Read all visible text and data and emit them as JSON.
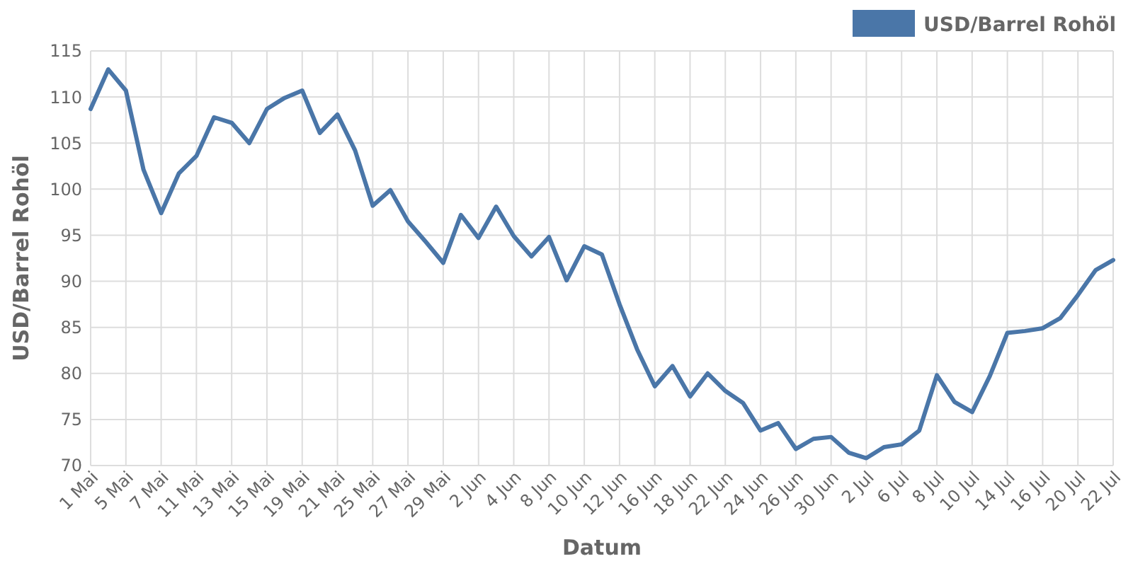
{
  "chart_data": {
    "type": "line",
    "xlabel": "Datum",
    "ylabel": "USD/Barrel Rohöl",
    "categories": [
      "1 Mai",
      null,
      "5 Mai",
      null,
      "7 Mai",
      null,
      "11 Mai",
      null,
      "13 Mai",
      null,
      "15 Mai",
      null,
      "19 Mai",
      null,
      "21 Mai",
      null,
      "25 Mai",
      null,
      "27 Mai",
      null,
      "29 Mai",
      null,
      "2 Jun",
      null,
      "4 Jun",
      null,
      "8 Jun",
      null,
      "10 Jun",
      null,
      "12 Jun",
      null,
      "16 Jun",
      null,
      "18 Jun",
      null,
      "22 Jun",
      null,
      "24 Jun",
      null,
      "26 Jun",
      null,
      "30 Jun",
      null,
      "2 Jul",
      null,
      "6 Jul",
      null,
      "8 Jul",
      null,
      "10 Jul",
      null,
      "14 Jul",
      null,
      "16 Jul",
      null,
      "20 Jul",
      null,
      "22 Jul"
    ],
    "series": [
      {
        "name": "USD/Barrel Rohöl",
        "color": "#4a76a8",
        "values": [
          108.7,
          113,
          110.7,
          102.1,
          97.4,
          101.7,
          103.6,
          107.8,
          107.2,
          105,
          108.7,
          109.9,
          110.7,
          106.1,
          108.1,
          104.2,
          98.2,
          99.9,
          96.5,
          94.3,
          92,
          97.2,
          94.7,
          98.1,
          94.9,
          92.7,
          94.8,
          90.1,
          93.8,
          92.9,
          87.5,
          82.6,
          78.6,
          80.8,
          77.5,
          80,
          78.1,
          76.8,
          73.8,
          74.6,
          71.8,
          72.9,
          73.1,
          71.4,
          70.8,
          72,
          72.3,
          73.8,
          79.8,
          76.9,
          75.8,
          79.7,
          84.4,
          84.6,
          84.9,
          86,
          88.5,
          91.2,
          92.3
        ]
      }
    ],
    "ylim": [
      70,
      115
    ],
    "yticks": [
      70,
      75,
      80,
      85,
      90,
      95,
      100,
      105,
      110,
      115
    ],
    "grid": true,
    "legend": "top right",
    "marker": "none",
    "line_style": "solid"
  }
}
